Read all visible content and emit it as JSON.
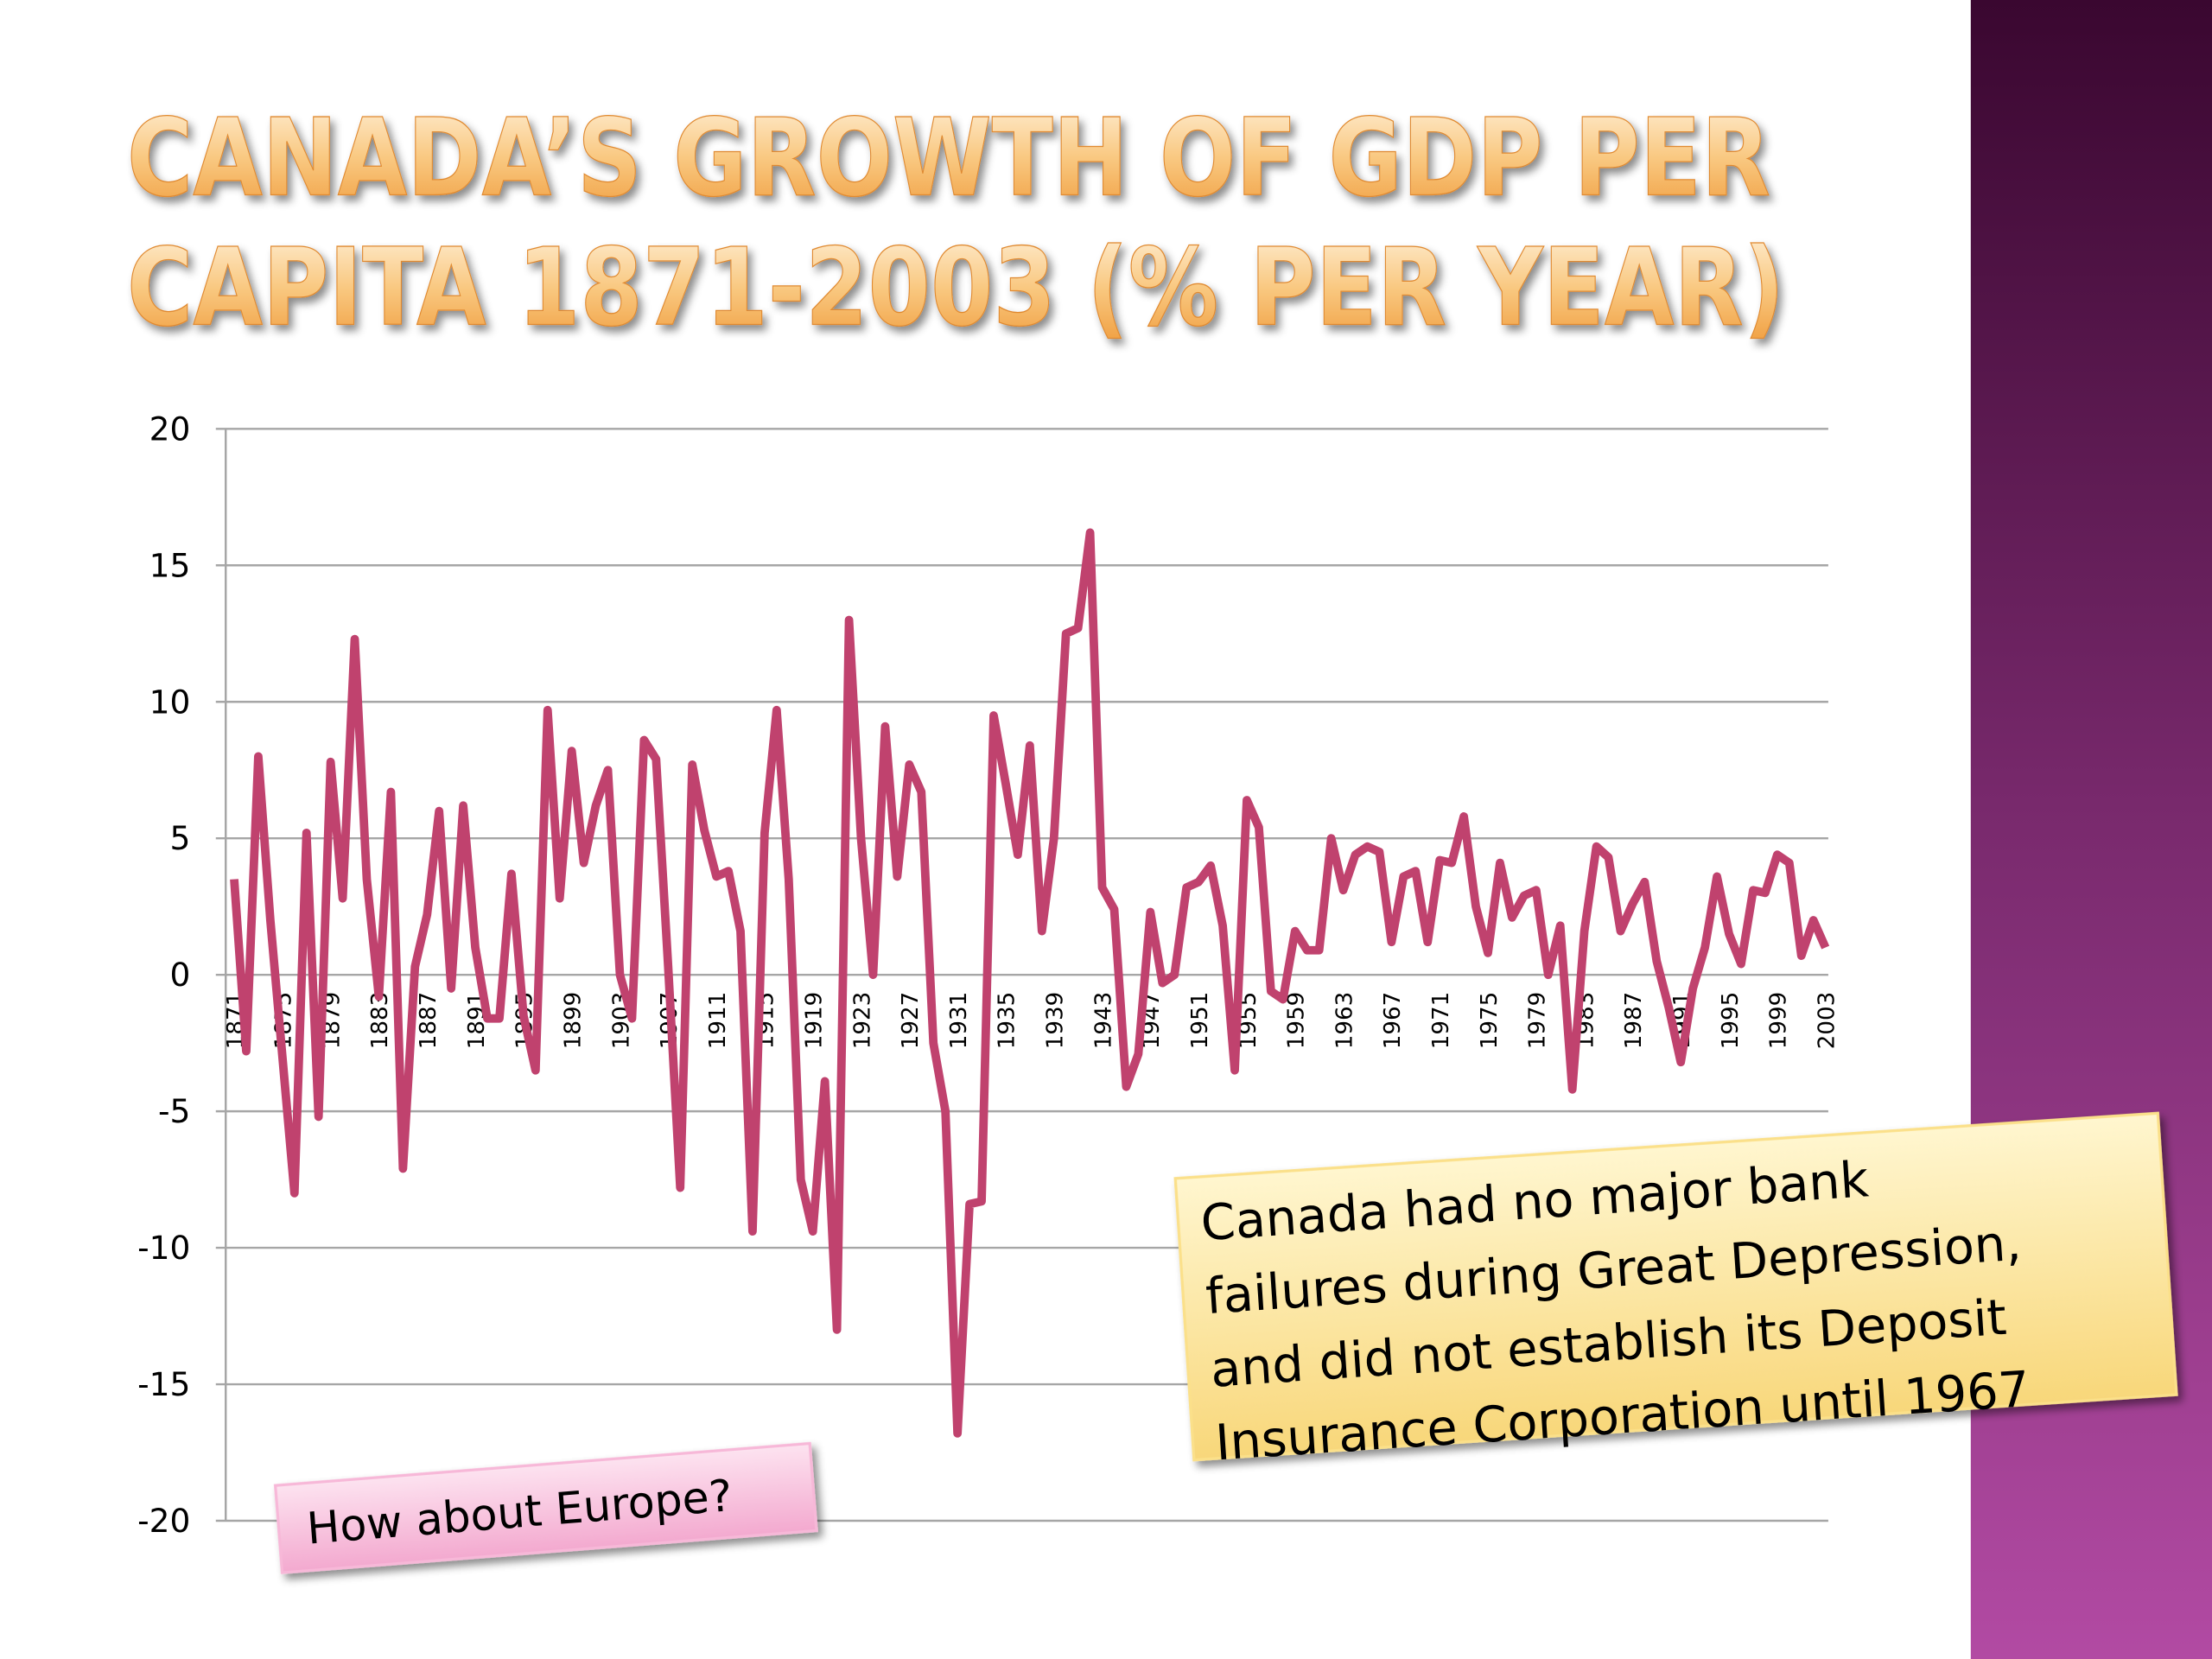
{
  "chart_data": {
    "type": "line",
    "title": [
      "CANADA’S GROWTH OF GDP PER",
      "CAPITA 1871-2003 (% PER YEAR)"
    ],
    "categories": [
      "1871",
      null,
      null,
      null,
      "1875",
      null,
      null,
      null,
      "1879",
      null,
      null,
      null,
      "1883",
      null,
      null,
      null,
      "1887",
      null,
      null,
      null,
      "1891",
      null,
      null,
      null,
      "1895",
      null,
      null,
      null,
      "1899",
      null,
      null,
      null,
      "1903",
      null,
      null,
      null,
      "1907",
      null,
      null,
      null,
      "1911",
      null,
      null,
      null,
      "1915",
      null,
      null,
      null,
      "1919",
      null,
      null,
      null,
      "1923",
      null,
      null,
      null,
      "1927",
      null,
      null,
      null,
      "1931",
      null,
      null,
      null,
      "1935",
      null,
      null,
      null,
      "1939",
      null,
      null,
      null,
      "1943",
      null,
      null,
      null,
      "1947",
      null,
      null,
      null,
      "1951",
      null,
      null,
      null,
      "1955",
      null,
      null,
      null,
      "1959",
      null,
      null,
      null,
      "1963",
      null,
      null,
      null,
      "1967",
      null,
      null,
      null,
      "1971",
      null,
      null,
      null,
      "1975",
      null,
      null,
      null,
      "1979",
      null,
      null,
      null,
      "1983",
      null,
      null,
      null,
      "1987",
      null,
      null,
      null,
      "1991",
      null,
      null,
      null,
      "1995",
      null,
      null,
      null,
      "1999",
      null,
      null,
      null,
      "2003"
    ],
    "values": [
      3.5,
      -2.8,
      8.0,
      2.0,
      -3.0,
      -8.0,
      5.2,
      -5.2,
      7.8,
      2.8,
      12.3,
      3.5,
      -0.8,
      6.7,
      -7.1,
      0.3,
      2.2,
      6.0,
      -0.5,
      6.2,
      1.0,
      -1.6,
      -1.6,
      3.7,
      -1.5,
      -3.5,
      9.7,
      2.8,
      8.2,
      4.1,
      6.2,
      7.5,
      0.0,
      -1.6,
      8.6,
      7.9,
      0.3,
      -7.8,
      7.7,
      5.3,
      3.6,
      3.8,
      1.6,
      -9.4,
      5.2,
      9.7,
      3.5,
      -7.5,
      -9.4,
      -3.9,
      -13.0,
      13.0,
      5.0,
      0.0,
      9.1,
      3.6,
      7.7,
      6.7,
      -2.5,
      -5.0,
      -16.8,
      -8.4,
      -8.3,
      9.5,
      7.0,
      4.4,
      8.4,
      1.6,
      5.0,
      12.5,
      12.7,
      16.2,
      3.2,
      2.4,
      -4.1,
      -2.9,
      2.3,
      -0.3,
      0.0,
      3.2,
      3.4,
      4.0,
      1.8,
      -3.5,
      6.4,
      5.4,
      -0.6,
      -0.9,
      1.6,
      0.9,
      0.9,
      5.0,
      3.1,
      4.4,
      4.7,
      4.5,
      1.2,
      3.6,
      3.8,
      1.2,
      4.2,
      4.1,
      5.8,
      2.5,
      0.8,
      4.1,
      2.1,
      2.9,
      3.1,
      0.0,
      1.8,
      -4.2,
      1.6,
      4.7,
      4.3,
      1.6,
      2.6,
      3.4,
      0.5,
      -1.2,
      -3.2,
      -0.5,
      1.0,
      3.6,
      1.5,
      0.4,
      3.1,
      3.0,
      4.4,
      4.1,
      0.7,
      2.0,
      1.0
    ],
    "color": "#c0426e",
    "ylim": [
      -20,
      20
    ],
    "yticks": [
      -20,
      -15,
      -10,
      -5,
      0,
      5,
      10,
      15,
      20
    ],
    "grid": true,
    "annotations": [
      {
        "lines": [
          "How about Europe?"
        ],
        "color": "#f7b8d8"
      },
      {
        "lines": [
          "Canada had no major bank",
          "failures during Great Depression,",
          "and did not establish its Deposit",
          "Insurance Corporation until 1967"
        ],
        "color": "#fbe08a"
      }
    ]
  }
}
